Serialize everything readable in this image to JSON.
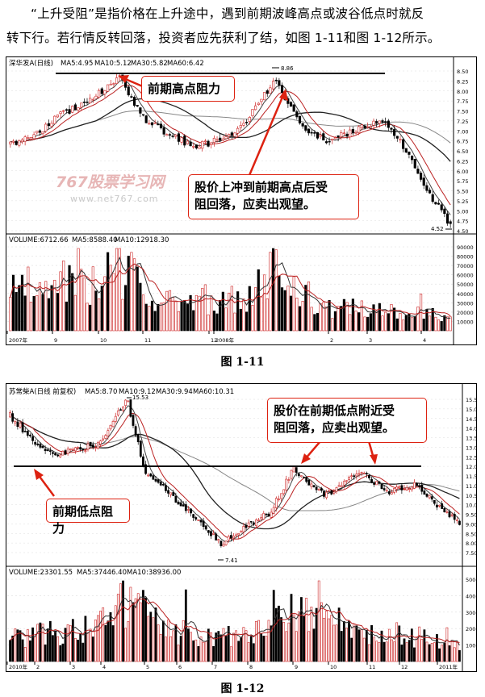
{
  "paragraph": {
    "line1": "“上升受阻”是指价格在上升途中，遇到前期波峰高点或波谷低点时就反",
    "line2": "转下行。若行情反转回落，投资者应先获利了结，如图 1-11和图 1-12所示。"
  },
  "fig1": {
    "header": {
      "name": "深华发A(日线)",
      "ma5": "MA5:4.95",
      "ma10": "MA10:5.12",
      "ma30": "MA30:5.82",
      "ma60": "MA60:6.42"
    },
    "y_ticks": [
      "8.50",
      "8.25",
      "8.00",
      "7.75",
      "7.50",
      "7.25",
      "7.00",
      "6.75",
      "6.50",
      "6.25",
      "6.00",
      "5.75",
      "5.50",
      "5.25",
      "5.00",
      "4.75",
      "4.50"
    ],
    "high_label": "8.86",
    "low_label": "4.52",
    "annotation_resistance": "前期高点阻力",
    "annotation_advice_l1": "股价上冲到前期高点后受",
    "annotation_advice_l2": "阻回落，应卖出观望。",
    "watermark_big": "767股票学习网",
    "watermark_url": "www.net767.com",
    "volume_header": {
      "volume": "VOLUME:6712.66",
      "ma5": "MA5:8588.40",
      "ma10": "MA10:12918.30"
    },
    "vol_ticks": [
      "90000",
      "80000",
      "70000",
      "60000",
      "50000",
      "40000",
      "30000",
      "20000",
      "10000"
    ],
    "x_labels": [
      "2007年",
      "9",
      "10",
      "11",
      "12",
      "2008年",
      "2",
      "3",
      "4"
    ],
    "caption": "图 1-11"
  },
  "fig2": {
    "header": {
      "name": "苏常柴A(日线 前复权)",
      "ma5": "MA5:8.70",
      "ma10": "MA10:9.12",
      "ma30": "MA30:9.94",
      "ma60": "MA60:10.31"
    },
    "y_ticks": [
      "15.50",
      "15.00",
      "14.50",
      "14.00",
      "13.50",
      "13.00",
      "12.50",
      "12.00",
      "11.50",
      "11.00",
      "10.50",
      "10.00",
      "9.50",
      "9.00",
      "8.50",
      "8.00",
      "7.50"
    ],
    "high_label": "15.53",
    "low_label": "7.41",
    "annotation_resistance": "前期低点阻力",
    "annotation_advice_l1": "股价在前期低点附近受",
    "annotation_advice_l2": "阻回落，应卖出观望。",
    "volume_header": {
      "volume": "VOLUME:23301.55",
      "ma5": "MA5:37446.40",
      "ma10": "MA10:38936.00"
    },
    "vol_ticks": [
      "50000",
      "40000",
      "30000",
      "20000",
      "10000"
    ],
    "x_labels": [
      "2010年",
      "2",
      "3",
      "4",
      "5",
      "6",
      "7",
      "8",
      "9",
      "10",
      "11",
      "12",
      "2011年"
    ],
    "caption": "图 1-12"
  }
}
